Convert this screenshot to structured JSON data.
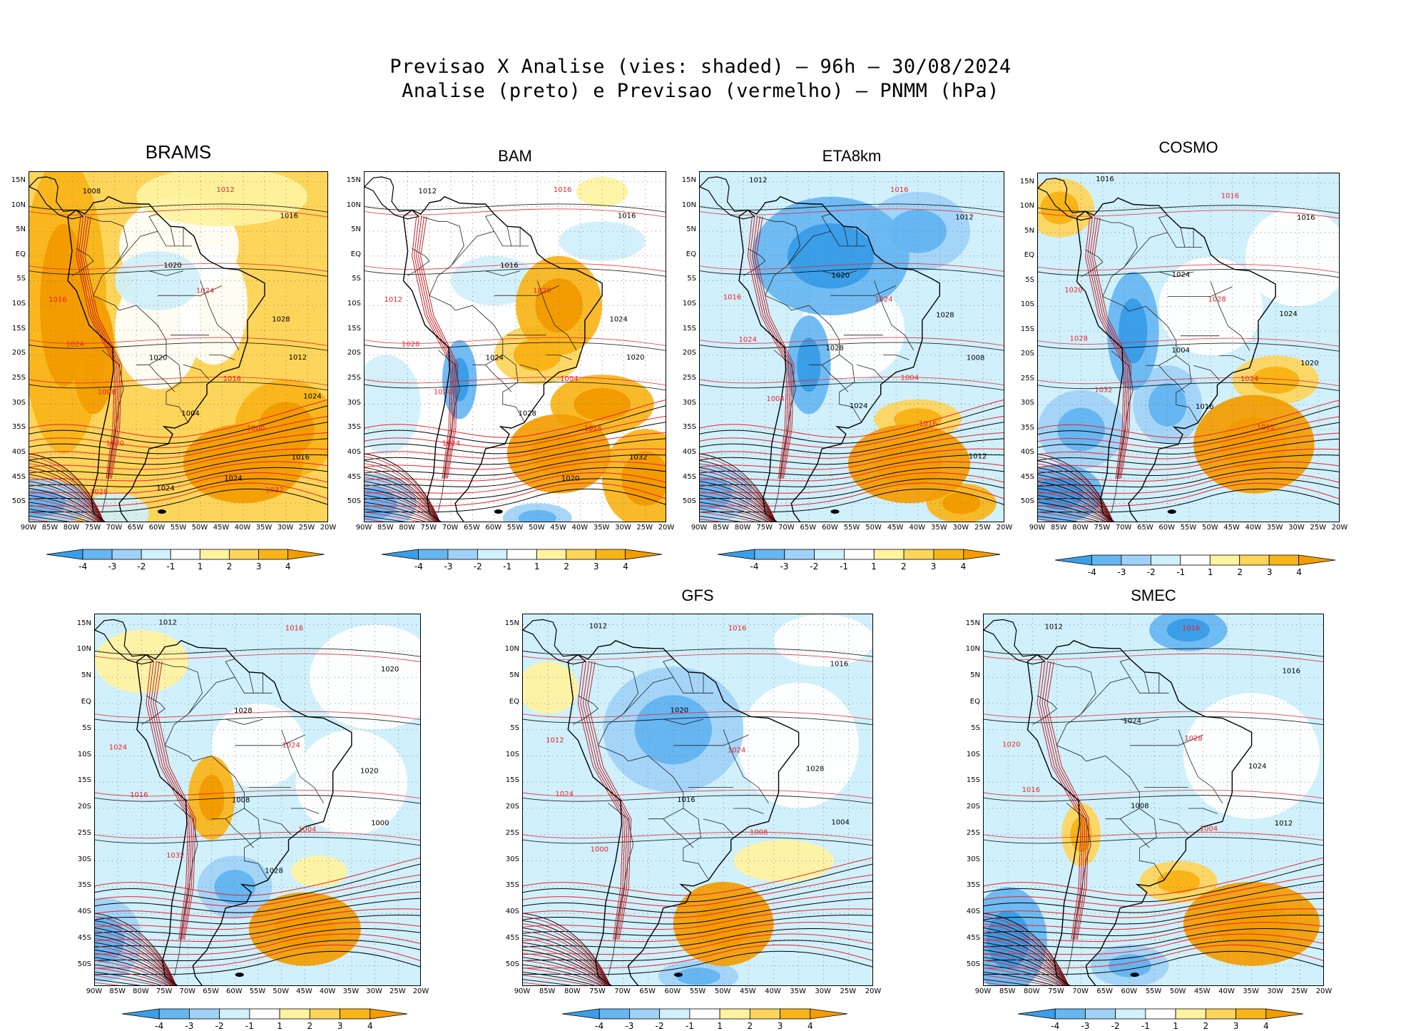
{
  "figure": {
    "title_line1": "Previsao X Analise (vies: shaded) – 96h – 30/08/2024",
    "title_line2": "Analise (preto) e Previsao (vermelho) – PNMM (hPa)"
  },
  "axes": {
    "lat_labels": [
      "15N",
      "10N",
      "5N",
      "EQ",
      "5S",
      "10S",
      "15S",
      "20S",
      "25S",
      "30S",
      "35S",
      "40S",
      "45S",
      "50S"
    ],
    "lon_labels": [
      "90W",
      "85W",
      "80W",
      "75W",
      "70W",
      "65W",
      "60W",
      "55W",
      "50W",
      "45W",
      "40W",
      "35W",
      "30W",
      "25W",
      "20W"
    ]
  },
  "colorbar": {
    "labels": [
      "-4",
      "-3",
      "-2",
      "-1",
      "1",
      "2",
      "3",
      "4"
    ],
    "colors": [
      "#3a9ee8",
      "#66b6f2",
      "#9fd2f8",
      "#d0f0fb",
      "#ffffff",
      "#fff3a0",
      "#fdd55a",
      "#f9b418",
      "#f39c00"
    ]
  },
  "colors": {
    "analysis_contour": "#000000",
    "forecast_contour": "#e8242c"
  },
  "panels": [
    {
      "id": "brams",
      "title": "BRAMS",
      "contour_labels": [
        "1008",
        "1012",
        "1016",
        "1016",
        "1020",
        "1024",
        "1028",
        "1024",
        "1020",
        "1016",
        "1012",
        "1008",
        "1004",
        "1000",
        "1016",
        "1020",
        "1024",
        "1032",
        "1024",
        "1028",
        "1024"
      ]
    },
    {
      "id": "bam",
      "title": "BAM",
      "contour_labels": [
        "1012",
        "1016",
        "1016",
        "1012",
        "1016",
        "1020",
        "1024",
        "1028",
        "1024",
        "1004",
        "1020",
        "1024",
        "1028",
        "1016",
        "1032",
        "1024",
        "1020"
      ]
    },
    {
      "id": "eta",
      "title": "ETA8km",
      "contour_labels": [
        "1012",
        "1016",
        "1012",
        "1016",
        "1020",
        "1024",
        "1028",
        "1024",
        "1028",
        "1004",
        "1008",
        "1004",
        "1024",
        "1016",
        "1012"
      ]
    },
    {
      "id": "cosmo",
      "title": "COSMO",
      "contour_labels": [
        "1016",
        "1016",
        "1016",
        "1020",
        "1024",
        "1028",
        "1024",
        "1028",
        "1004",
        "1024",
        "1020",
        "1032",
        "1016",
        "1012"
      ]
    },
    {
      "id": "p5",
      "title": "",
      "contour_labels": [
        "1012",
        "1016",
        "1020",
        "1024",
        "1028",
        "1024",
        "1020",
        "1016",
        "1008",
        "1004",
        "1000",
        "1032",
        "1028"
      ]
    },
    {
      "id": "gfs",
      "title": "GFS",
      "contour_labels": [
        "1012",
        "1016",
        "1016",
        "1012",
        "1020",
        "1024",
        "1028",
        "1024",
        "1016",
        "1008",
        "1004",
        "1000"
      ]
    },
    {
      "id": "smec",
      "title": "SMEC",
      "contour_labels": [
        "1012",
        "1016",
        "1016",
        "1020",
        "1024",
        "1028",
        "1024",
        "1016",
        "1008",
        "1004",
        "1012"
      ]
    }
  ]
}
